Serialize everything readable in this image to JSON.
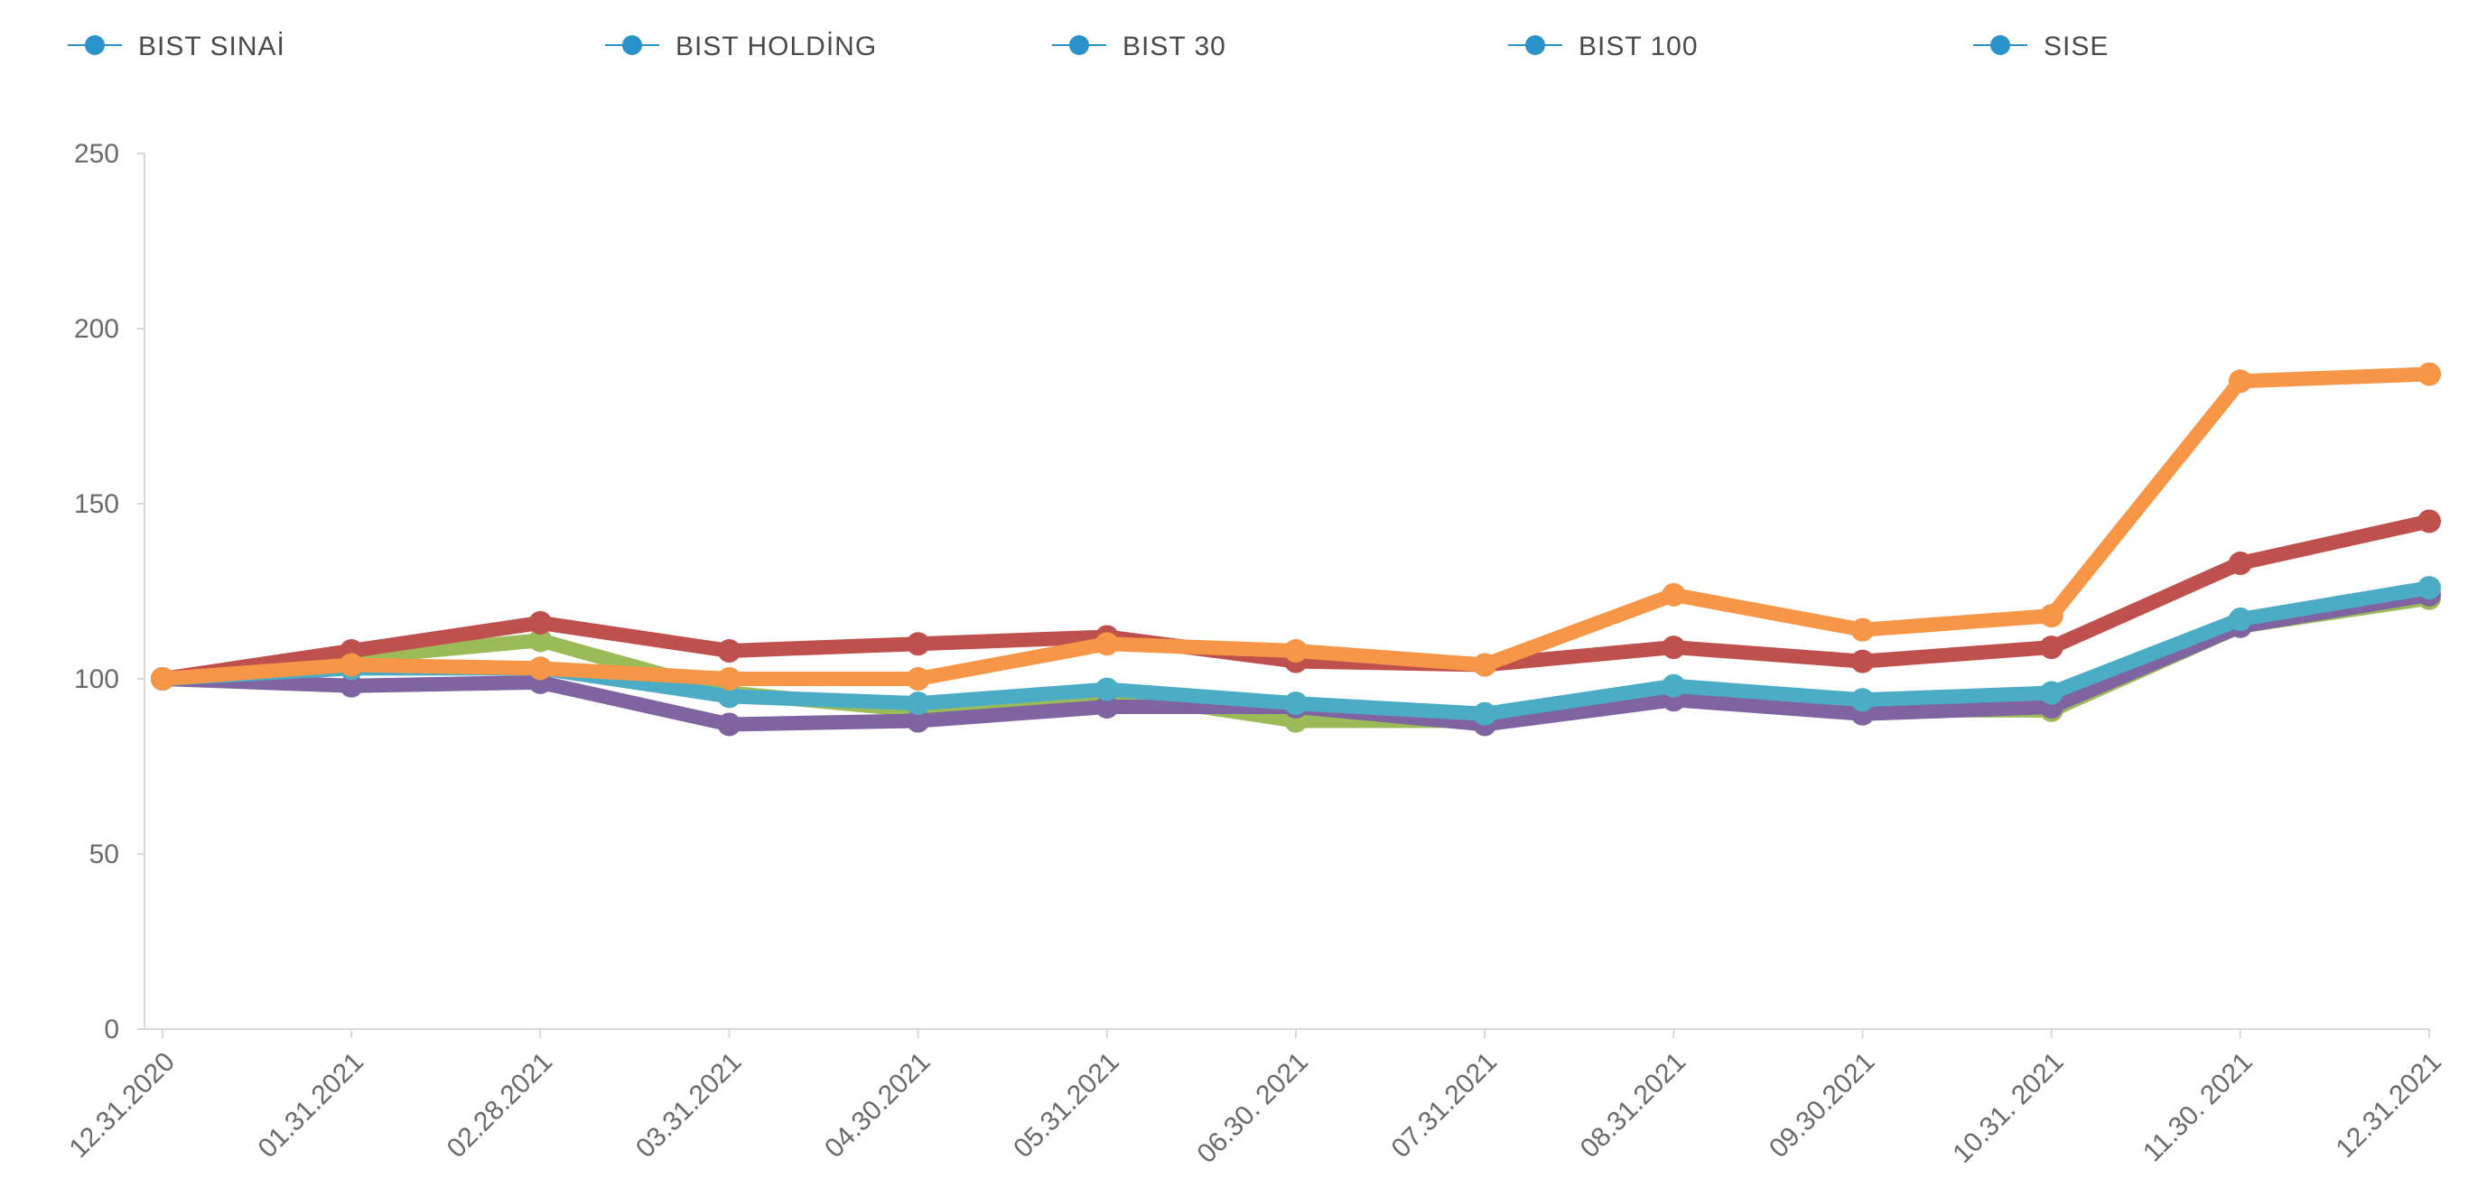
{
  "chart_data": {
    "type": "line",
    "title": "",
    "xlabel": "",
    "ylabel": "",
    "ylim": [
      0,
      250
    ],
    "yticks": [
      0,
      50,
      100,
      150,
      200,
      250
    ],
    "x": [
      "12.31.2020",
      "01.31.2021",
      "02.28.2021",
      "03.31.2021",
      "04.30.2021",
      "05.31.2021",
      "06.30. 2021",
      "07.31.2021",
      "08.31.2021",
      "09.30.2021",
      "10.31. 2021",
      "11.30. 2021",
      "12.31.2021"
    ],
    "xtick_labels": [
      "12.31.2020",
      "01.31.2021",
      "02.28.2021",
      "03.31.2021",
      "04.30.2021",
      "05.31.2021",
      "06.30. 2021",
      "07.31.2021",
      "08.31.2021",
      "09.30.2021",
      "10.31. 2021",
      "11.30. 2021",
      "12.31.2021"
    ],
    "grid": false,
    "legend_position": "top",
    "legend_marker_color": "#2a93c9",
    "series": [
      {
        "name": "BIST SINAİ",
        "color": "#9bbb59",
        "values": [
          100,
          106,
          111,
          96,
          91,
          96,
          88,
          88,
          95,
          91,
          91,
          115,
          123
        ]
      },
      {
        "name": "BIST HOLDİNG",
        "color": "#c0504d",
        "values": [
          100,
          108,
          116,
          108,
          110,
          112,
          105,
          104,
          109,
          105,
          109,
          133,
          145
        ]
      },
      {
        "name": "BIST 30",
        "color": "#8064a2",
        "values": [
          100,
          98,
          99,
          87,
          88,
          92,
          92,
          87,
          94,
          90,
          92,
          115,
          124
        ]
      },
      {
        "name": "BIST 100",
        "color": "#4bacc6",
        "values": [
          100,
          103,
          103,
          95,
          93,
          97,
          93,
          90,
          98,
          94,
          96,
          117,
          126
        ]
      },
      {
        "name": "SISE",
        "color": "#f79646",
        "values": [
          100,
          104,
          103,
          100,
          100,
          110,
          108,
          104,
          124,
          114,
          118,
          185,
          187
        ]
      }
    ]
  }
}
